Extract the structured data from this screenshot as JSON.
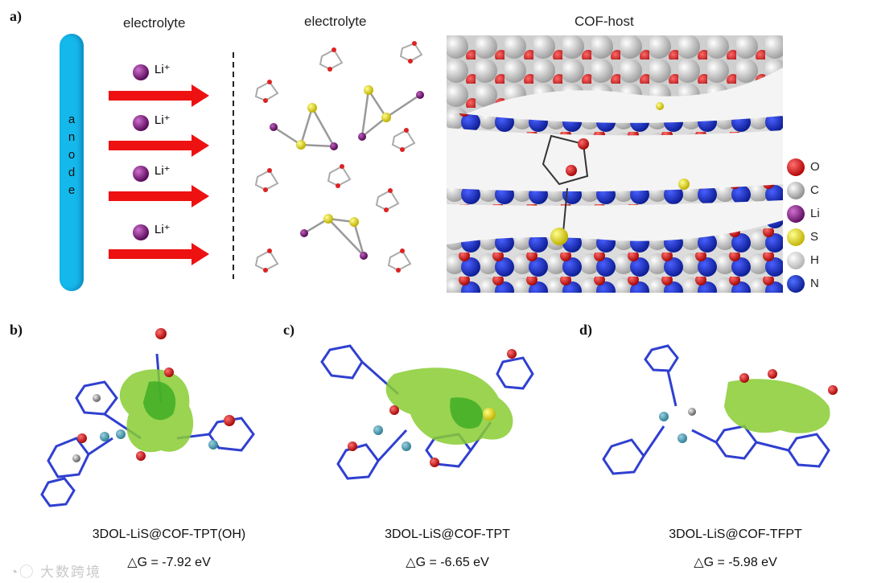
{
  "panel_a": {
    "label": "a)",
    "header_left": "electrolyte",
    "header_mid": "electrolyte",
    "header_right": "COF-host",
    "anode_letters": [
      "a",
      "n",
      "o",
      "d",
      "e"
    ],
    "ion_labels": [
      "Li⁺",
      "Li⁺",
      "Li⁺",
      "Li⁺"
    ],
    "legend": [
      {
        "symbol": "O",
        "color": "#e01010"
      },
      {
        "symbol": "C",
        "color": "#c8c8c8"
      },
      {
        "symbol": "Li",
        "color": "#8a1a8a"
      },
      {
        "symbol": "S",
        "color": "#f0e000"
      },
      {
        "symbol": "H",
        "color": "#f2f2f2"
      },
      {
        "symbol": "N",
        "color": "#1030d0"
      }
    ]
  },
  "panel_b": {
    "label": "b)",
    "title": "3DOL-LiS@COF-TPT(OH)",
    "energy": "△G = -7.92 eV"
  },
  "panel_c": {
    "label": "c)",
    "title": "3DOL-LiS@COF-TPT",
    "energy": "△G = -6.65 eV"
  },
  "panel_d": {
    "label": "d)",
    "title": "3DOL-LiS@COF-TFPT",
    "energy": "△G = -5.98 eV"
  },
  "watermark": "大数跨境"
}
